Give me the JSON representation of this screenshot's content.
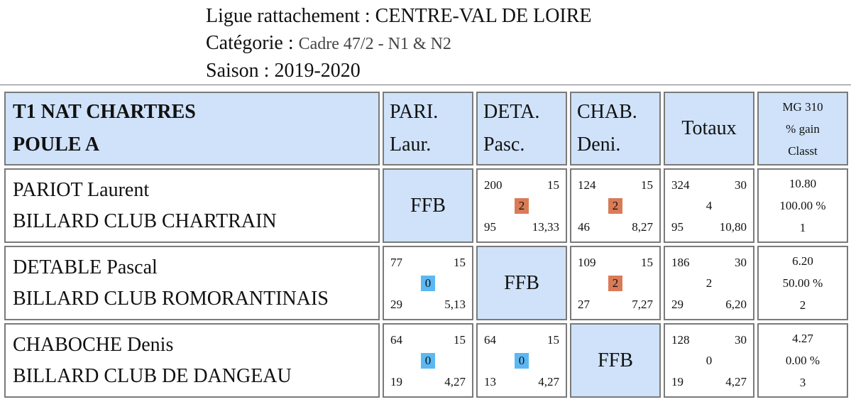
{
  "header": {
    "ligue": "Ligue rattachement : CENTRE-VAL DE LOIRE",
    "categorie_label": "Catégorie :",
    "categorie_value": "Cadre 47/2 - N1 & N2",
    "saison": "Saison : 2019-2020"
  },
  "colors": {
    "header_bg": "#cfe2f9",
    "badge_win": "#d97b57",
    "badge_loss": "#5bb8f2",
    "border": "#7a7a7a"
  },
  "table": {
    "title_line1": "T1 NAT CHARTRES",
    "title_line2": "POULE A",
    "columns": [
      {
        "line1": "PARI.",
        "line2": "Laur."
      },
      {
        "line1": "DETA.",
        "line2": "Pasc."
      },
      {
        "line1": "CHAB.",
        "line2": "Deni."
      }
    ],
    "totaux_label": "Totaux",
    "stats_header": [
      "MG 310",
      "% gain",
      "Classt"
    ],
    "ffb": "FFB",
    "rows": [
      {
        "name": "PARIOT Laurent",
        "club": "BILLARD CLUB CHARTRAIN",
        "results": [
          null,
          {
            "points": "200",
            "distance": "15",
            "match_points": "2",
            "innings": "95",
            "average": "13,33"
          },
          {
            "points": "124",
            "distance": "15",
            "match_points": "2",
            "innings": "46",
            "average": "8,27"
          }
        ],
        "totals": {
          "points": "324",
          "distance": "30",
          "match_points": "4",
          "innings": "95",
          "average": "10,80"
        },
        "stats": {
          "mg": "10.80",
          "pct": "100.00 %",
          "rank": "1"
        }
      },
      {
        "name": "DETABLE Pascal",
        "club": "BILLARD CLUB ROMORANTINAIS",
        "results": [
          {
            "points": "77",
            "distance": "15",
            "match_points": "0",
            "innings": "29",
            "average": "5,13"
          },
          null,
          {
            "points": "109",
            "distance": "15",
            "match_points": "2",
            "innings": "27",
            "average": "7,27"
          }
        ],
        "totals": {
          "points": "186",
          "distance": "30",
          "match_points": "2",
          "innings": "29",
          "average": "6,20"
        },
        "stats": {
          "mg": "6.20",
          "pct": "50.00 %",
          "rank": "2"
        }
      },
      {
        "name": "CHABOCHE Denis",
        "club": "BILLARD CLUB DE DANGEAU",
        "results": [
          {
            "points": "64",
            "distance": "15",
            "match_points": "0",
            "innings": "19",
            "average": "4,27"
          },
          {
            "points": "64",
            "distance": "15",
            "match_points": "0",
            "innings": "13",
            "average": "4,27"
          },
          null
        ],
        "totals": {
          "points": "128",
          "distance": "30",
          "match_points": "0",
          "innings": "19",
          "average": "4,27"
        },
        "stats": {
          "mg": "4.27",
          "pct": "0.00 %",
          "rank": "3"
        }
      }
    ]
  }
}
